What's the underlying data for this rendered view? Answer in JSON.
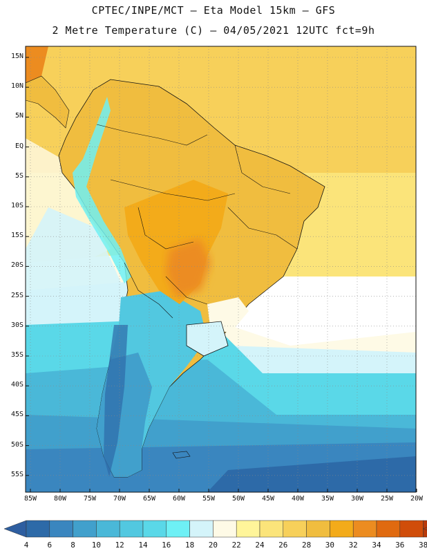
{
  "header": {
    "line1": "CPTEC/INPE/MCT –  Eta Model 15km – GFS",
    "line2": "2 Metre Temperature (C) – 04/05/2021 12UTC fct=9h"
  },
  "axes": {
    "lat_labels": [
      "15N",
      "10N",
      "5N",
      "EQ",
      "5S",
      "10S",
      "15S",
      "20S",
      "25S",
      "30S",
      "35S",
      "40S",
      "45S",
      "50S",
      "55S"
    ],
    "lon_labels": [
      "85W",
      "80W",
      "75W",
      "70W",
      "65W",
      "60W",
      "55W",
      "50W",
      "45W",
      "40W",
      "35W",
      "30W",
      "25W",
      "20W"
    ]
  },
  "colorbar": {
    "labels": [
      "4",
      "6",
      "8",
      "10",
      "12",
      "14",
      "16",
      "18",
      "20",
      "22",
      "24",
      "26",
      "28",
      "30",
      "32",
      "34",
      "36",
      "38"
    ],
    "colors": [
      "#2d6aa8",
      "#3a86bf",
      "#41a0cc",
      "#4ab8d8",
      "#52c8e0",
      "#5ad8e8",
      "#6ef0f5",
      "#d4f4fa",
      "#fefae6",
      "#fff59a",
      "#fbe47a",
      "#f7d05a",
      "#f0bd3f",
      "#f3ab1a",
      "#ec8c20",
      "#e06a10",
      "#d04d0a",
      "#b83a0a"
    ],
    "low_color": "#2e5ea0",
    "high_color": "#b53b0c"
  },
  "colors": {
    "ocean_north": "#f7d05a",
    "ocean_mid": "#fbe47a",
    "ocean_cool": "#d4f4fa",
    "ocean_cold": "#52c8e0",
    "ocean_deep": "#3a86bf",
    "land_hot": "#f3ab1a",
    "land_warm": "#f0bd3f",
    "border": "#111111"
  }
}
